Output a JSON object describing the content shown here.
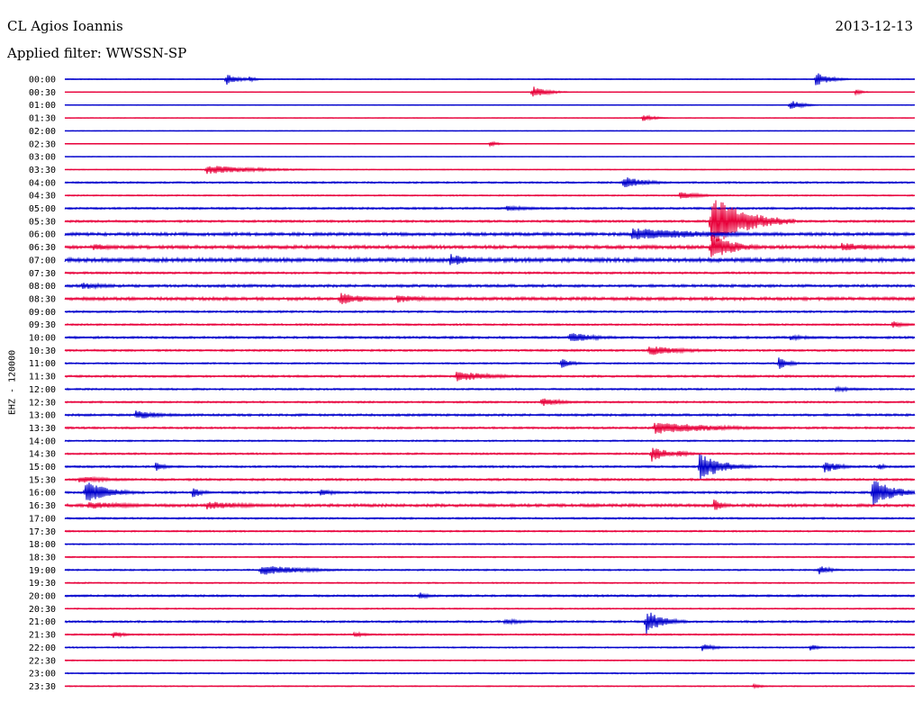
{
  "header": {
    "station": "CL Agios Ioannis",
    "date": "2013-12-13",
    "filter": "Applied filter: WWSSN-SP"
  },
  "chart_data": {
    "type": "line",
    "title": "CL Agios Ioannis",
    "date": "2013-12-13",
    "subtitle": "Applied filter: WWSSN-SP",
    "ylabel": "EHZ - 120000",
    "rows": [
      "00:00",
      "00:30",
      "01:00",
      "01:30",
      "02:00",
      "02:30",
      "03:00",
      "03:30",
      "04:00",
      "04:30",
      "05:00",
      "05:30",
      "06:00",
      "06:30",
      "07:00",
      "07:30",
      "08:00",
      "08:30",
      "09:00",
      "09:30",
      "10:00",
      "10:30",
      "11:00",
      "11:30",
      "12:00",
      "12:30",
      "13:00",
      "13:30",
      "14:00",
      "14:30",
      "15:00",
      "15:30",
      "16:00",
      "16:30",
      "17:00",
      "17:30",
      "18:00",
      "18:30",
      "19:00",
      "19:30",
      "20:00",
      "20:30",
      "21:00",
      "21:30",
      "22:00",
      "22:30",
      "23:00",
      "23:30"
    ],
    "row_minutes": 30,
    "colors": [
      "#0000cc",
      "#e8003a"
    ],
    "noise_levels": [
      0.4,
      0.3,
      0.3,
      0.3,
      0.3,
      0.3,
      0.3,
      0.4,
      0.8,
      0.6,
      0.9,
      1.0,
      1.4,
      1.5,
      1.8,
      0.9,
      1.2,
      1.4,
      0.9,
      0.8,
      1.0,
      0.9,
      0.7,
      0.9,
      0.8,
      0.8,
      1.0,
      0.9,
      0.7,
      0.8,
      0.9,
      1.0,
      1.0,
      1.3,
      0.8,
      0.7,
      0.6,
      0.6,
      0.7,
      0.6,
      0.9,
      0.6,
      0.9,
      0.7,
      0.6,
      0.5,
      0.6,
      0.5
    ],
    "events": [
      {
        "row": "00:00",
        "minute": 5.7,
        "amplitude": 7,
        "duration": 0.4
      },
      {
        "row": "00:00",
        "minute": 6.5,
        "amplitude": 3,
        "duration": 0.3
      },
      {
        "row": "00:00",
        "minute": 26.5,
        "amplitude": 8,
        "duration": 0.5
      },
      {
        "row": "00:30",
        "minute": 16.5,
        "amplitude": 7,
        "duration": 0.5
      },
      {
        "row": "00:30",
        "minute": 27.9,
        "amplitude": 3,
        "duration": 0.3
      },
      {
        "row": "01:00",
        "minute": 25.6,
        "amplitude": 6,
        "duration": 0.4
      },
      {
        "row": "01:30",
        "minute": 20.4,
        "amplitude": 4,
        "duration": 0.4
      },
      {
        "row": "02:30",
        "minute": 15.0,
        "amplitude": 3,
        "duration": 0.3
      },
      {
        "row": "03:30",
        "minute": 5.0,
        "amplitude": 5,
        "duration": 1.8
      },
      {
        "row": "04:00",
        "minute": 19.7,
        "amplitude": 7,
        "duration": 0.8
      },
      {
        "row": "04:30",
        "minute": 21.7,
        "amplitude": 4,
        "duration": 0.8
      },
      {
        "row": "05:00",
        "minute": 15.6,
        "amplitude": 3,
        "duration": 1.0
      },
      {
        "row": "05:30",
        "minute": 22.8,
        "amplitude": 30,
        "duration": 1.2
      },
      {
        "row": "06:00",
        "minute": 20.0,
        "amplitude": 7,
        "duration": 3.0
      },
      {
        "row": "06:30",
        "minute": 22.8,
        "amplitude": 16,
        "duration": 0.8
      },
      {
        "row": "06:30",
        "minute": 27.4,
        "amplitude": 5,
        "duration": 1.5
      },
      {
        "row": "06:30",
        "minute": 1.0,
        "amplitude": 4,
        "duration": 0.8
      },
      {
        "row": "07:00",
        "minute": 13.6,
        "amplitude": 7,
        "duration": 0.8
      },
      {
        "row": "08:00",
        "minute": 0.6,
        "amplitude": 4,
        "duration": 1.0
      },
      {
        "row": "08:30",
        "minute": 9.7,
        "amplitude": 7,
        "duration": 1.0
      },
      {
        "row": "08:30",
        "minute": 11.7,
        "amplitude": 5,
        "duration": 1.2
      },
      {
        "row": "09:30",
        "minute": 29.2,
        "amplitude": 4,
        "duration": 0.5
      },
      {
        "row": "10:00",
        "minute": 17.8,
        "amplitude": 6,
        "duration": 1.0
      },
      {
        "row": "10:00",
        "minute": 25.6,
        "amplitude": 3,
        "duration": 0.8
      },
      {
        "row": "10:30",
        "minute": 20.6,
        "amplitude": 6,
        "duration": 1.2
      },
      {
        "row": "11:00",
        "minute": 17.5,
        "amplitude": 6,
        "duration": 0.4
      },
      {
        "row": "11:00",
        "minute": 25.2,
        "amplitude": 7,
        "duration": 0.4
      },
      {
        "row": "11:30",
        "minute": 13.8,
        "amplitude": 6,
        "duration": 1.3
      },
      {
        "row": "12:00",
        "minute": 27.2,
        "amplitude": 3,
        "duration": 0.8
      },
      {
        "row": "12:30",
        "minute": 16.8,
        "amplitude": 5,
        "duration": 0.8
      },
      {
        "row": "13:00",
        "minute": 2.5,
        "amplitude": 5,
        "duration": 1.0
      },
      {
        "row": "13:30",
        "minute": 20.8,
        "amplitude": 7,
        "duration": 2.2
      },
      {
        "row": "14:30",
        "minute": 20.7,
        "amplitude": 10,
        "duration": 0.5
      },
      {
        "row": "14:30",
        "minute": 21.6,
        "amplitude": 4,
        "duration": 0.5
      },
      {
        "row": "15:00",
        "minute": 22.4,
        "amplitude": 16,
        "duration": 0.8
      },
      {
        "row": "15:00",
        "minute": 3.2,
        "amplitude": 6,
        "duration": 0.3
      },
      {
        "row": "15:00",
        "minute": 26.8,
        "amplitude": 8,
        "duration": 0.5
      },
      {
        "row": "15:00",
        "minute": 28.7,
        "amplitude": 4,
        "duration": 0.3
      },
      {
        "row": "15:30",
        "minute": 0.5,
        "amplitude": 4,
        "duration": 1.2
      },
      {
        "row": "16:00",
        "minute": 0.7,
        "amplitude": 14,
        "duration": 0.8
      },
      {
        "row": "16:00",
        "minute": 4.5,
        "amplitude": 6,
        "duration": 0.4
      },
      {
        "row": "16:00",
        "minute": 9.0,
        "amplitude": 4,
        "duration": 0.6
      },
      {
        "row": "16:00",
        "minute": 28.5,
        "amplitude": 15,
        "duration": 0.8
      },
      {
        "row": "16:30",
        "minute": 0.8,
        "amplitude": 4,
        "duration": 2.0
      },
      {
        "row": "16:30",
        "minute": 5.0,
        "amplitude": 5,
        "duration": 1.5
      },
      {
        "row": "16:30",
        "minute": 22.9,
        "amplitude": 7,
        "duration": 0.4
      },
      {
        "row": "19:00",
        "minute": 6.9,
        "amplitude": 6,
        "duration": 1.5
      },
      {
        "row": "19:00",
        "minute": 26.6,
        "amplitude": 6,
        "duration": 0.4
      },
      {
        "row": "20:00",
        "minute": 12.5,
        "amplitude": 5,
        "duration": 0.3
      },
      {
        "row": "21:00",
        "minute": 20.5,
        "amplitude": 14,
        "duration": 0.6
      },
      {
        "row": "21:00",
        "minute": 15.5,
        "amplitude": 3,
        "duration": 1.0
      },
      {
        "row": "21:30",
        "minute": 1.7,
        "amplitude": 4,
        "duration": 0.4
      },
      {
        "row": "21:30",
        "minute": 10.2,
        "amplitude": 3,
        "duration": 0.5
      },
      {
        "row": "22:00",
        "minute": 22.5,
        "amplitude": 4,
        "duration": 0.5
      },
      {
        "row": "22:00",
        "minute": 26.3,
        "amplitude": 4,
        "duration": 0.3
      },
      {
        "row": "23:30",
        "minute": 24.3,
        "amplitude": 3,
        "duration": 0.3
      }
    ]
  }
}
